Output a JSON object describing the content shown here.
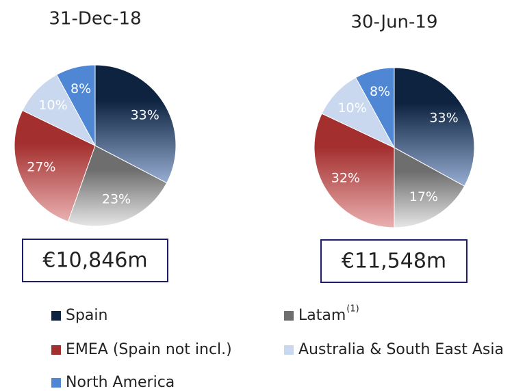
{
  "chart_data": [
    {
      "type": "pie",
      "title": "31-Dec-18",
      "total": "€10,846m",
      "categories": [
        "Spain",
        "Latam",
        "EMEA (Spain not incl.)",
        "Australia & South East Asia",
        "North America"
      ],
      "category_notes": [
        null,
        "(1)",
        null,
        null,
        null
      ],
      "values": [
        33,
        23,
        27,
        10,
        8
      ],
      "value_labels": [
        "33%",
        "23%",
        "27%",
        "10%",
        "8%"
      ],
      "colors": [
        "#0d2340",
        "#6e6e6e",
        "#a3302f",
        "#c9d8ef",
        "#4f87d4"
      ],
      "gradient_to": [
        "#97aed3",
        "#e6e6e6",
        "#eab0b0",
        null,
        null
      ]
    },
    {
      "type": "pie",
      "title": "30-Jun-19",
      "total": "€11,548m",
      "categories": [
        "Spain",
        "Latam",
        "EMEA (Spain not incl.)",
        "Australia & South East Asia",
        "North America"
      ],
      "values": [
        33,
        17,
        32,
        10,
        8
      ],
      "value_labels": [
        "33%",
        "17%",
        "32%",
        "10%",
        "8%"
      ],
      "colors": [
        "#0d2340",
        "#6e6e6e",
        "#a3302f",
        "#c9d8ef",
        "#4f87d4"
      ],
      "gradient_to": [
        "#97aed3",
        "#e6e6e6",
        "#eab0b0",
        null,
        null
      ]
    }
  ]
}
